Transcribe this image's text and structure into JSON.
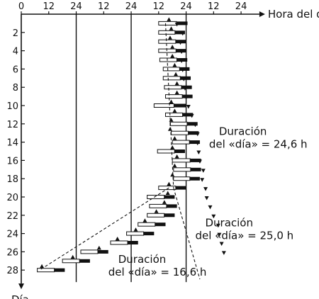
{
  "chart_data": {
    "type": "scatter",
    "title": "",
    "xlabel": "Hora del día",
    "ylabel": "Día",
    "x_tick_labels": [
      "0",
      "12",
      "24",
      "12",
      "24",
      "12",
      "24",
      "12",
      "24"
    ],
    "x_ticks_hours": [
      0,
      12,
      24,
      36,
      48,
      60,
      72,
      84,
      96
    ],
    "xlim_hours": [
      0,
      104
    ],
    "y_tick_labels": [
      "2",
      "4",
      "6",
      "8",
      "10",
      "12",
      "14",
      "16",
      "18",
      "20",
      "22",
      "24",
      "26",
      "28"
    ],
    "y_ticks": [
      2,
      4,
      6,
      8,
      10,
      12,
      14,
      16,
      18,
      20,
      22,
      24,
      26,
      28
    ],
    "ylim_days": [
      0,
      29
    ],
    "vertical_lines_hours": [
      24,
      48,
      72
    ],
    "sleep_bars": [
      {
        "day": 1,
        "start": 60.0,
        "end": 72.6
      },
      {
        "day": 2,
        "start": 60.0,
        "end": 71.5
      },
      {
        "day": 3,
        "start": 60.0,
        "end": 72.0
      },
      {
        "day": 4,
        "start": 60.0,
        "end": 72.2
      },
      {
        "day": 5,
        "start": 60.5,
        "end": 72.5
      },
      {
        "day": 6,
        "start": 62.0,
        "end": 73.5
      },
      {
        "day": 7,
        "start": 62.0,
        "end": 74.0
      },
      {
        "day": 8,
        "start": 62.5,
        "end": 74.5
      },
      {
        "day": 9,
        "start": 63.0,
        "end": 74.8
      },
      {
        "day": 10,
        "start": 58.0,
        "end": 72.0
      },
      {
        "day": 11,
        "start": 63.0,
        "end": 75.0
      },
      {
        "day": 12,
        "start": 65.0,
        "end": 77.0
      },
      {
        "day": 13,
        "start": 65.5,
        "end": 77.5
      },
      {
        "day": 14,
        "start": 66.0,
        "end": 78.0
      },
      {
        "day": 15,
        "start": 59.5,
        "end": 71.5
      },
      {
        "day": 16,
        "start": 66.0,
        "end": 78.5
      },
      {
        "day": 17,
        "start": 66.5,
        "end": 78.5
      },
      {
        "day": 18,
        "start": 66.5,
        "end": 78.0
      },
      {
        "day": 19,
        "start": 60.0,
        "end": 72.0
      },
      {
        "day": 20,
        "start": 55.0,
        "end": 67.0
      },
      {
        "day": 21,
        "start": 56.0,
        "end": 68.0
      },
      {
        "day": 22,
        "start": 55.0,
        "end": 67.0
      },
      {
        "day": 23,
        "start": 51.0,
        "end": 63.0
      },
      {
        "day": 24,
        "start": 46.0,
        "end": 58.0
      },
      {
        "day": 25,
        "start": 39.0,
        "end": 51.0
      },
      {
        "day": 26,
        "start": 26.0,
        "end": 38.0
      },
      {
        "day": 27,
        "start": 18.0,
        "end": 30.0
      },
      {
        "day": 28,
        "start": 7.0,
        "end": 19.0
      }
    ],
    "min_markers": [
      {
        "day": 1,
        "hour": 64.5
      },
      {
        "day": 2,
        "hour": 65.5
      },
      {
        "day": 3,
        "hour": 65.0
      },
      {
        "day": 4,
        "hour": 66.0
      },
      {
        "day": 5,
        "hour": 66.0
      },
      {
        "day": 6,
        "hour": 67.0
      },
      {
        "day": 7,
        "hour": 67.5
      },
      {
        "day": 8,
        "hour": 68.0
      },
      {
        "day": 9,
        "hour": 68.0
      },
      {
        "day": 10,
        "hour": 65.5
      },
      {
        "day": 11,
        "hour": 67.0
      },
      {
        "day": 12,
        "hour": 65.5
      },
      {
        "day": 13,
        "hour": 65.0
      },
      {
        "day": 14,
        "hour": 67.0
      },
      {
        "day": 15,
        "hour": 66.0
      },
      {
        "day": 16,
        "hour": 68.0
      },
      {
        "day": 17,
        "hour": 67.0
      },
      {
        "day": 18,
        "hour": 66.0
      },
      {
        "day": 19,
        "hour": 64.5
      },
      {
        "day": 20,
        "hour": 64.0
      },
      {
        "day": 21,
        "hour": 62.5
      },
      {
        "day": 22,
        "hour": 59.0
      },
      {
        "day": 23,
        "hour": 54.0
      },
      {
        "day": 24,
        "hour": 50.0
      },
      {
        "day": 25,
        "hour": 42.0
      },
      {
        "day": 26,
        "hour": 34.0
      },
      {
        "day": 27,
        "hour": 22.5
      },
      {
        "day": 28,
        "hour": 9.0
      }
    ],
    "max_markers": [
      {
        "day": 1,
        "hour": 68.0
      },
      {
        "day": 2,
        "hour": 70.5
      },
      {
        "day": 3,
        "hour": 69.5
      },
      {
        "day": 4,
        "hour": 70.0
      },
      {
        "day": 5,
        "hour": 70.0
      },
      {
        "day": 6,
        "hour": 70.5
      },
      {
        "day": 7,
        "hour": 71.0
      },
      {
        "day": 8,
        "hour": 71.5
      },
      {
        "day": 9,
        "hour": 72.0
      },
      {
        "day": 10,
        "hour": 73.0
      },
      {
        "day": 11,
        "hour": 74.5
      },
      {
        "day": 12,
        "hour": 76.0
      },
      {
        "day": 13,
        "hour": 77.0
      },
      {
        "day": 14,
        "hour": 77.0
      },
      {
        "day": 15,
        "hour": 77.5
      },
      {
        "day": 16,
        "hour": 78.0
      },
      {
        "day": 17,
        "hour": 79.5
      },
      {
        "day": 18,
        "hour": 79.0
      },
      {
        "day": 19,
        "hour": 80.5
      },
      {
        "day": 20,
        "hour": 81.0
      },
      {
        "day": 21,
        "hour": 82.5
      },
      {
        "day": 22,
        "hour": 84.0
      },
      {
        "day": 23,
        "hour": 86.0
      },
      {
        "day": 24,
        "hour": 86.5
      },
      {
        "day": 25,
        "hour": 87.5
      },
      {
        "day": 26,
        "hour": 88.5
      }
    ],
    "trend_lines": [
      {
        "from": {
          "day": 1,
          "hour": 63.0
        },
        "to": {
          "day": 19,
          "hour": 66.5
        }
      },
      {
        "from": {
          "day": 19,
          "hour": 64.5
        },
        "to": {
          "day": 28,
          "hour": 8.0
        }
      },
      {
        "from": {
          "day": 19,
          "hour": 66.5
        },
        "to": {
          "day": 29,
          "hour": 78.0
        }
      }
    ],
    "annotations": [
      {
        "line1": "Duración",
        "line2": "del «día» = 24,6 h",
        "day": 13.2,
        "hour": 82.0
      },
      {
        "line1": "Duración",
        "line2": "del «día» = 25,0 h",
        "day": 23.2,
        "hour": 76.0
      },
      {
        "line1": "Duración",
        "line2": "del «día» = 16,6 h",
        "day": 27.2,
        "hour": 38.0
      }
    ]
  }
}
